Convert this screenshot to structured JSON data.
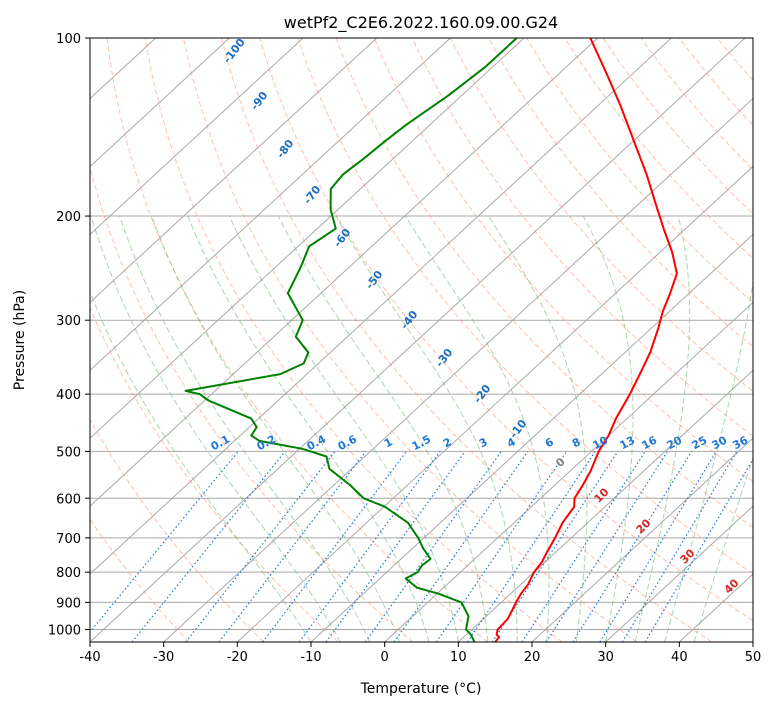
{
  "chart_data": {
    "type": "line",
    "title": "wetPf2_C2E6.2022.160.09.00.G24",
    "xlabel": "Temperature (°C)",
    "ylabel": "Pressure (hPa)",
    "xlim": [
      -40,
      50
    ],
    "ylim": [
      1050,
      100
    ],
    "y_scale": "log",
    "skew": "skew-T",
    "x_ticks": [
      -40,
      -30,
      -20,
      -10,
      0,
      10,
      20,
      30,
      40,
      50
    ],
    "y_ticks": [
      100,
      200,
      300,
      400,
      500,
      600,
      700,
      800,
      900,
      1000
    ],
    "grid": true,
    "colors": {
      "temperature": "#ff0000",
      "dewpoint": "#008000",
      "isotherm": "#a9a9a9",
      "dry_adiabat": "#ff8c69",
      "moist_adiabat": "#66b266",
      "mixing_ratio": "#1f77d4",
      "theta_e_label": "#1f6fbf",
      "warm_label": "#d62728"
    },
    "series": [
      {
        "name": "Temperature",
        "points": [
          [
            1050,
            15
          ],
          [
            1030,
            14.8
          ],
          [
            1020,
            14.1
          ],
          [
            1000,
            13.5
          ],
          [
            960,
            13.3
          ],
          [
            940,
            12.9
          ],
          [
            900,
            12.0
          ],
          [
            870,
            11.4
          ],
          [
            840,
            11.0
          ],
          [
            800,
            10.0
          ],
          [
            770,
            9.6
          ],
          [
            740,
            8.8
          ],
          [
            700,
            7.8
          ],
          [
            660,
            6.6
          ],
          [
            620,
            5.8
          ],
          [
            600,
            4.6
          ],
          [
            570,
            3.8
          ],
          [
            540,
            2.8
          ],
          [
            500,
            1.0
          ],
          [
            470,
            0
          ],
          [
            440,
            -1.5
          ],
          [
            400,
            -3.2
          ],
          [
            370,
            -4.8
          ],
          [
            340,
            -6.6
          ],
          [
            310,
            -9
          ],
          [
            290,
            -10.9
          ],
          [
            270,
            -12.6
          ],
          [
            250,
            -14.6
          ],
          [
            230,
            -18.4
          ],
          [
            210,
            -23
          ],
          [
            190,
            -27.9
          ],
          [
            170,
            -33.3
          ],
          [
            150,
            -39.7
          ],
          [
            130,
            -47
          ],
          [
            115,
            -53.5
          ],
          [
            100,
            -61
          ]
        ]
      },
      {
        "name": "Dewpoint",
        "points": [
          [
            1050,
            12.2
          ],
          [
            1020,
            10.6
          ],
          [
            1000,
            9.2
          ],
          [
            950,
            7.6
          ],
          [
            900,
            4.6
          ],
          [
            870,
            0.2
          ],
          [
            850,
            -3.6
          ],
          [
            820,
            -6.5
          ],
          [
            800,
            -5.8
          ],
          [
            780,
            -6.2
          ],
          [
            760,
            -6
          ],
          [
            730,
            -8.5
          ],
          [
            700,
            -10.8
          ],
          [
            660,
            -14.4
          ],
          [
            620,
            -19.9
          ],
          [
            600,
            -24
          ],
          [
            570,
            -27.8
          ],
          [
            535,
            -33
          ],
          [
            510,
            -35.2
          ],
          [
            495,
            -39.6
          ],
          [
            480,
            -46.6
          ],
          [
            470,
            -48.5
          ],
          [
            455,
            -49
          ],
          [
            440,
            -51
          ],
          [
            410,
            -59.5
          ],
          [
            400,
            -61.6
          ],
          [
            395,
            -64
          ],
          [
            370,
            -53.6
          ],
          [
            355,
            -52
          ],
          [
            340,
            -53
          ],
          [
            320,
            -57
          ],
          [
            300,
            -58.5
          ],
          [
            270,
            -64.5
          ],
          [
            245,
            -66.5
          ],
          [
            225,
            -68.5
          ],
          [
            210,
            -67.5
          ],
          [
            195,
            -71
          ],
          [
            180,
            -74
          ],
          [
            170,
            -74.5
          ],
          [
            160,
            -74
          ],
          [
            150,
            -73.7
          ],
          [
            140,
            -73.2
          ],
          [
            125,
            -71.8
          ],
          [
            112,
            -71
          ],
          [
            100,
            -71
          ]
        ]
      }
    ],
    "theta_e_labels": [
      "-100",
      "-90",
      "-80",
      "-70",
      "-60",
      "-50",
      "-40",
      "-30",
      "-20",
      "-10"
    ],
    "dry_adiabat_labels": [
      "0",
      "10",
      "20",
      "30",
      "40"
    ],
    "mixing_ratio_labels": [
      "0.1",
      "0.2",
      "0.4",
      "0.6",
      "1",
      "1.5",
      "2",
      "3",
      "4",
      "6",
      "8",
      "10",
      "13",
      "16",
      "20",
      "25",
      "30",
      "36"
    ]
  }
}
